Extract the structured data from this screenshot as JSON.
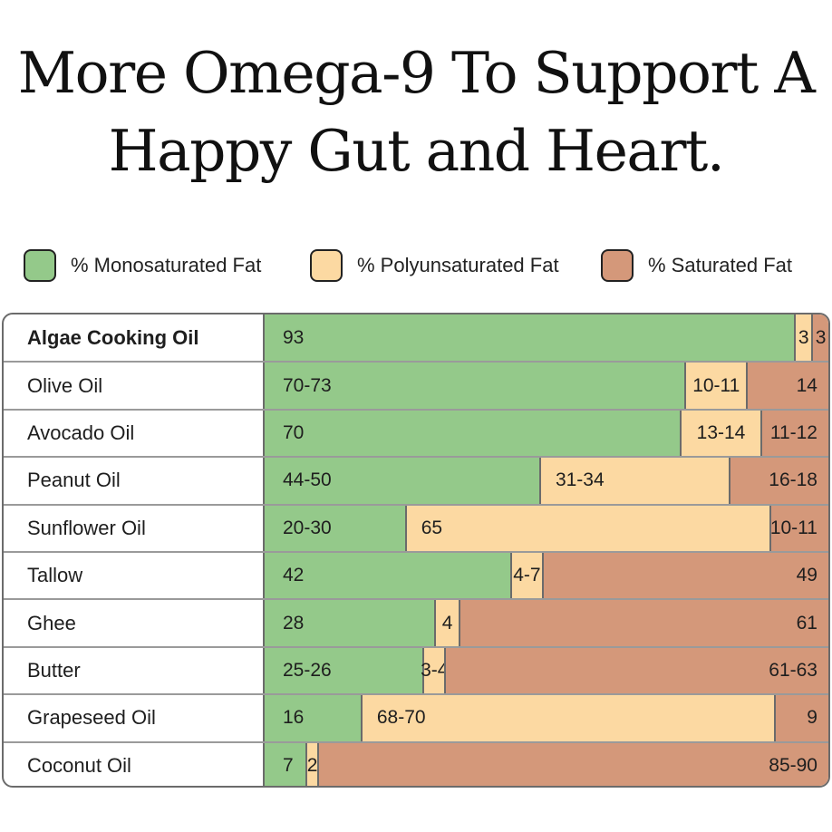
{
  "title": "More Omega-9 To Support A Happy Gut and Heart.",
  "colors": {
    "mono": "#94c98a",
    "poly": "#fcd9a2",
    "sat": "#d4987a"
  },
  "chart_data": {
    "type": "bar",
    "orientation": "horizontal",
    "stacked": true,
    "title": "More Omega-9 To Support A Happy Gut and Heart.",
    "legend_position": "top",
    "series": [
      {
        "name": "% Monosaturated Fat",
        "color": "#94c98a"
      },
      {
        "name": "% Polyunsaturated Fat",
        "color": "#fcd9a2"
      },
      {
        "name": "% Saturated Fat",
        "color": "#d4987a"
      }
    ],
    "rows": [
      {
        "name": "Algae Cooking Oil",
        "bold": true,
        "mono": "93",
        "poly": "3",
        "sat": "3",
        "mono_v": 93,
        "poly_v": 3,
        "sat_v": 3
      },
      {
        "name": "Olive Oil",
        "mono": "70-73",
        "poly": "10-11",
        "sat": "14",
        "mono_v": 71.5,
        "poly_v": 10.5,
        "sat_v": 14
      },
      {
        "name": "Avocado Oil",
        "mono": "70",
        "poly": "13-14",
        "sat": "11-12",
        "mono_v": 70,
        "poly_v": 13.5,
        "sat_v": 11.5
      },
      {
        "name": "Peanut Oil",
        "mono": "44-50",
        "poly": "31-34",
        "sat": "16-18",
        "mono_v": 47,
        "poly_v": 32.5,
        "sat_v": 17
      },
      {
        "name": "Sunflower Oil",
        "mono": "20-30",
        "poly": "65",
        "sat": "10-11",
        "mono_v": 25,
        "poly_v": 65,
        "sat_v": 10.5
      },
      {
        "name": "Tallow",
        "mono": "42",
        "poly": "4-7",
        "sat": "49",
        "mono_v": 42,
        "poly_v": 5.5,
        "sat_v": 49
      },
      {
        "name": "Ghee",
        "mono": "28",
        "poly": "4",
        "sat": "61",
        "mono_v": 28,
        "poly_v": 4,
        "sat_v": 61
      },
      {
        "name": "Butter",
        "mono": "25-26",
        "poly": "3-4",
        "sat": "61-63",
        "mono_v": 25.5,
        "poly_v": 3.5,
        "sat_v": 62
      },
      {
        "name": "Grapeseed Oil",
        "mono": "16",
        "poly": "68-70",
        "sat": "9",
        "mono_v": 16,
        "poly_v": 69,
        "sat_v": 9
      },
      {
        "name": "Coconut Oil",
        "mono": "7",
        "poly": "2",
        "sat": "85-90",
        "mono_v": 7,
        "poly_v": 2,
        "sat_v": 87.5
      }
    ]
  }
}
